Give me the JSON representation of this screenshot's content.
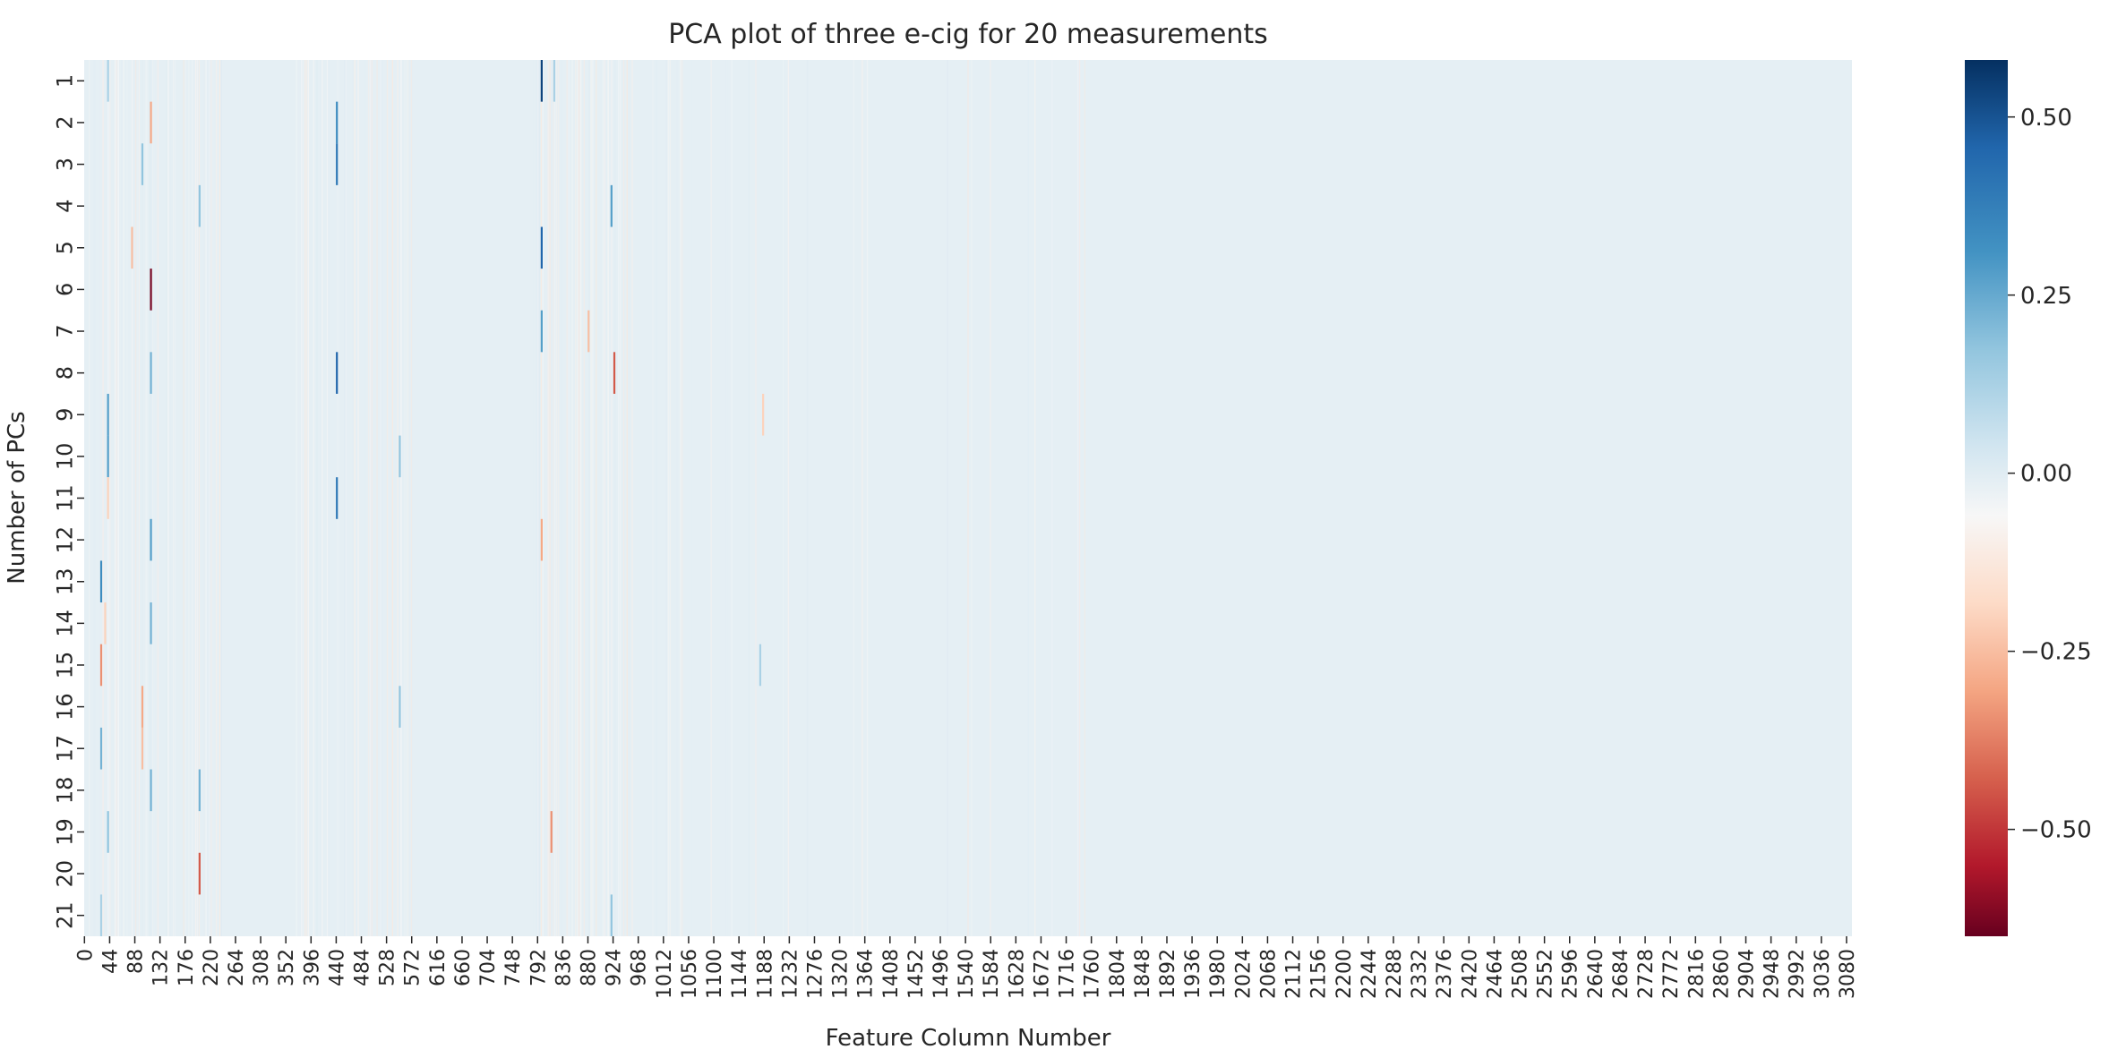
{
  "chart_data": {
    "type": "heatmap",
    "title": "PCA plot of three e-cig for 20 measurements",
    "xlabel": "Feature Column Number",
    "ylabel": "Number of PCs",
    "rows": [
      "1",
      "2",
      "3",
      "4",
      "5",
      "6",
      "7",
      "8",
      "9",
      "10",
      "11",
      "12",
      "13",
      "14",
      "15",
      "16",
      "17",
      "18",
      "19",
      "20",
      "21"
    ],
    "x_range": [
      0,
      3090
    ],
    "x_ticks": [
      "0",
      "44",
      "88",
      "132",
      "176",
      "220",
      "264",
      "308",
      "352",
      "396",
      "440",
      "484",
      "528",
      "572",
      "616",
      "660",
      "704",
      "748",
      "792",
      "836",
      "880",
      "924",
      "968",
      "1012",
      "1056",
      "1100",
      "1144",
      "1188",
      "1232",
      "1276",
      "1320",
      "1364",
      "1408",
      "1452",
      "1496",
      "1540",
      "1584",
      "1628",
      "1672",
      "1716",
      "1760",
      "1804",
      "1848",
      "1892",
      "1936",
      "1980",
      "2024",
      "2068",
      "2112",
      "2156",
      "2200",
      "2244",
      "2288",
      "2332",
      "2376",
      "2420",
      "2464",
      "2508",
      "2552",
      "2596",
      "2640",
      "2684",
      "2728",
      "2772",
      "2816",
      "2860",
      "2904",
      "2948",
      "2992",
      "3036",
      "3080"
    ],
    "background_value": 0.02,
    "highlights": [
      {
        "row": 1,
        "col": 798,
        "value": 0.55
      },
      {
        "row": 1,
        "col": 820,
        "value": 0.2
      },
      {
        "row": 1,
        "col": 40,
        "value": 0.2
      },
      {
        "row": 2,
        "col": 440,
        "value": 0.4
      },
      {
        "row": 2,
        "col": 115,
        "value": -0.25
      },
      {
        "row": 3,
        "col": 440,
        "value": 0.45
      },
      {
        "row": 3,
        "col": 100,
        "value": 0.25
      },
      {
        "row": 4,
        "col": 920,
        "value": 0.35
      },
      {
        "row": 4,
        "col": 200,
        "value": 0.25
      },
      {
        "row": 5,
        "col": 798,
        "value": 0.5
      },
      {
        "row": 5,
        "col": 82,
        "value": -0.2
      },
      {
        "row": 6,
        "col": 115,
        "value": -0.62
      },
      {
        "row": 7,
        "col": 798,
        "value": 0.35
      },
      {
        "row": 7,
        "col": 880,
        "value": -0.2
      },
      {
        "row": 8,
        "col": 440,
        "value": 0.5
      },
      {
        "row": 8,
        "col": 925,
        "value": -0.4
      },
      {
        "row": 8,
        "col": 115,
        "value": 0.3
      },
      {
        "row": 9,
        "col": 40,
        "value": 0.35
      },
      {
        "row": 9,
        "col": 1185,
        "value": -0.15
      },
      {
        "row": 10,
        "col": 40,
        "value": 0.35
      },
      {
        "row": 10,
        "col": 550,
        "value": 0.25
      },
      {
        "row": 11,
        "col": 440,
        "value": 0.45
      },
      {
        "row": 11,
        "col": 40,
        "value": -0.15
      },
      {
        "row": 12,
        "col": 115,
        "value": 0.35
      },
      {
        "row": 12,
        "col": 798,
        "value": -0.25
      },
      {
        "row": 13,
        "col": 28,
        "value": 0.4
      },
      {
        "row": 14,
        "col": 115,
        "value": 0.3
      },
      {
        "row": 14,
        "col": 35,
        "value": -0.15
      },
      {
        "row": 15,
        "col": 28,
        "value": -0.3
      },
      {
        "row": 15,
        "col": 1180,
        "value": 0.2
      },
      {
        "row": 16,
        "col": 100,
        "value": -0.25
      },
      {
        "row": 16,
        "col": 550,
        "value": 0.25
      },
      {
        "row": 17,
        "col": 28,
        "value": 0.3
      },
      {
        "row": 17,
        "col": 100,
        "value": -0.2
      },
      {
        "row": 18,
        "col": 200,
        "value": 0.3
      },
      {
        "row": 18,
        "col": 115,
        "value": 0.3
      },
      {
        "row": 19,
        "col": 815,
        "value": -0.3
      },
      {
        "row": 19,
        "col": 40,
        "value": 0.25
      },
      {
        "row": 20,
        "col": 200,
        "value": -0.4
      },
      {
        "row": 21,
        "col": 920,
        "value": 0.25
      },
      {
        "row": 21,
        "col": 28,
        "value": 0.2
      }
    ],
    "colorbar": {
      "colormap": "RdBu",
      "range": [
        -0.65,
        0.58
      ],
      "ticks": [
        {
          "value": 0.5,
          "label": "0.50"
        },
        {
          "value": 0.25,
          "label": "0.25"
        },
        {
          "value": 0.0,
          "label": "0.00"
        },
        {
          "value": -0.25,
          "label": "−0.25"
        },
        {
          "value": -0.5,
          "label": "−0.50"
        }
      ]
    }
  }
}
